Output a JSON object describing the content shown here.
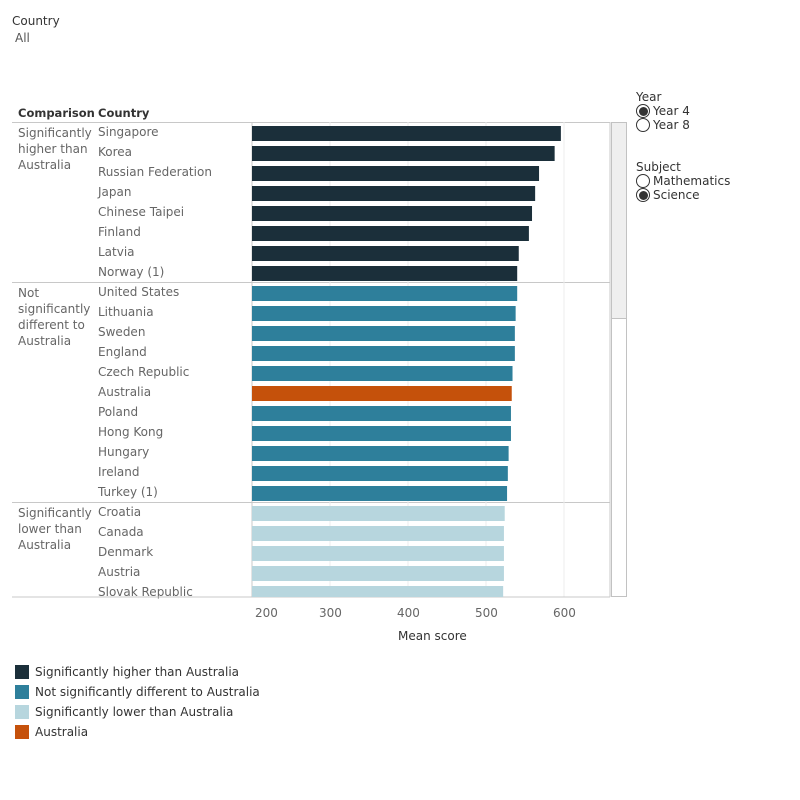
{
  "filter": {
    "title": "Country",
    "value": "All"
  },
  "table_headers": {
    "comparison": "Comparison",
    "country": "Country"
  },
  "groups": [
    {
      "label": [
        "Significantly",
        "higher than",
        "Australia"
      ]
    },
    {
      "label": [
        "Not",
        "significantly",
        "different to",
        "Australia"
      ]
    },
    {
      "label": [
        "Significantly",
        "lower than",
        "Australia"
      ]
    }
  ],
  "year_filter": {
    "title": "Year",
    "options": [
      {
        "label": "Year 4",
        "selected": true
      },
      {
        "label": "Year 8",
        "selected": false
      }
    ]
  },
  "subject_filter": {
    "title": "Subject",
    "options": [
      {
        "label": "Mathematics",
        "selected": false
      },
      {
        "label": "Science",
        "selected": true
      }
    ]
  },
  "legend": [
    {
      "label": "Significantly higher than Australia",
      "color": "#1b2f3a"
    },
    {
      "label": "Not significantly different to Australia",
      "color": "#2e7f9b"
    },
    {
      "label": "Significantly lower than Australia",
      "color": "#b7d6de"
    },
    {
      "label": "Australia",
      "color": "#c5510b"
    }
  ],
  "chart_data": {
    "type": "bar",
    "orientation": "horizontal",
    "title": "",
    "xlabel": "Mean score",
    "ylabel": "Country",
    "xlim": [
      200,
      660
    ],
    "xticks": [
      200,
      300,
      400,
      500,
      600
    ],
    "grid": true,
    "legend_position": "bottom-left",
    "categories": [
      "Singapore",
      "Korea",
      "Russian Federation",
      "Japan",
      "Chinese Taipei",
      "Finland",
      "Latvia",
      "Norway (1)",
      "United States",
      "Lithuania",
      "Sweden",
      "England",
      "Czech Republic",
      "Australia",
      "Poland",
      "Hong Kong",
      "Hungary",
      "Ireland",
      "Turkey (1)",
      "Croatia",
      "Canada",
      "Denmark",
      "Austria",
      "Slovak Republic"
    ],
    "values": [
      596,
      588,
      568,
      563,
      559,
      555,
      542,
      540,
      540,
      538,
      537,
      537,
      534,
      533,
      532,
      532,
      529,
      528,
      527,
      524,
      523,
      523,
      523,
      522
    ],
    "group": [
      0,
      0,
      0,
      0,
      0,
      0,
      0,
      0,
      1,
      1,
      1,
      1,
      1,
      3,
      1,
      1,
      1,
      1,
      1,
      2,
      2,
      2,
      2,
      2
    ],
    "group_names": [
      "Significantly higher than Australia",
      "Not significantly different to Australia",
      "Significantly lower than Australia",
      "Australia"
    ]
  }
}
